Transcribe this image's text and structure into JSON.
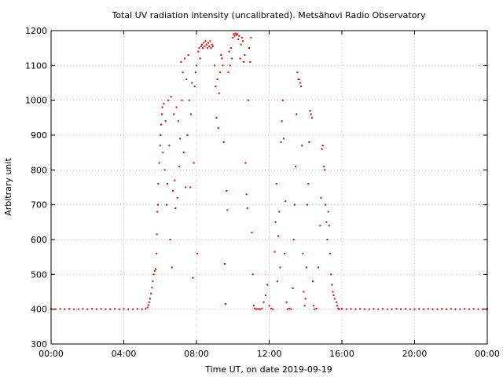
{
  "chart_data": {
    "type": "scatter",
    "title": "Total UV radiation intensity (uncalibrated). Metsähovi Radio Observatory",
    "xlabel": "Time UT, on date 2019-09-19",
    "ylabel": "Arbitrary unit",
    "xlim": [
      0,
      24
    ],
    "ylim": [
      300,
      1200
    ],
    "grid": true,
    "series_color": "#e00000",
    "x_ticks": [
      {
        "value": 0,
        "label": "00:00"
      },
      {
        "value": 4,
        "label": "04:00"
      },
      {
        "value": 8,
        "label": "08:00"
      },
      {
        "value": 12,
        "label": "12:00"
      },
      {
        "value": 16,
        "label": "16:00"
      },
      {
        "value": 20,
        "label": "20:00"
      },
      {
        "value": 24,
        "label": "00:00"
      }
    ],
    "y_ticks": [
      {
        "value": 300,
        "label": "300"
      },
      {
        "value": 400,
        "label": "400"
      },
      {
        "value": 500,
        "label": "500"
      },
      {
        "value": 600,
        "label": "600"
      },
      {
        "value": 700,
        "label": "700"
      },
      {
        "value": 800,
        "label": "800"
      },
      {
        "value": 900,
        "label": "900"
      },
      {
        "value": 1000,
        "label": "1000"
      },
      {
        "value": 1100,
        "label": "1100"
      },
      {
        "value": 1200,
        "label": "1200"
      }
    ],
    "points": [
      [
        0.0,
        401
      ],
      [
        0.25,
        400
      ],
      [
        0.5,
        401
      ],
      [
        0.75,
        400
      ],
      [
        1.0,
        401
      ],
      [
        1.25,
        400
      ],
      [
        1.5,
        400
      ],
      [
        1.75,
        401
      ],
      [
        2.0,
        400
      ],
      [
        2.25,
        401
      ],
      [
        2.5,
        400
      ],
      [
        2.75,
        401
      ],
      [
        3.0,
        400
      ],
      [
        3.25,
        400
      ],
      [
        3.5,
        401
      ],
      [
        3.75,
        400
      ],
      [
        4.0,
        401
      ],
      [
        4.25,
        400
      ],
      [
        4.5,
        400
      ],
      [
        4.75,
        401
      ],
      [
        5.0,
        400
      ],
      [
        5.2,
        401
      ],
      [
        5.3,
        405
      ],
      [
        5.35,
        412
      ],
      [
        5.4,
        420
      ],
      [
        5.45,
        430
      ],
      [
        5.5,
        445
      ],
      [
        5.55,
        462
      ],
      [
        5.6,
        480
      ],
      [
        5.65,
        500
      ],
      [
        5.7,
        510
      ],
      [
        5.75,
        515
      ],
      [
        5.8,
        560
      ],
      [
        5.82,
        615
      ],
      [
        5.85,
        680
      ],
      [
        5.88,
        700
      ],
      [
        5.9,
        760
      ],
      [
        5.95,
        820
      ],
      [
        6.0,
        870
      ],
      [
        6.02,
        900
      ],
      [
        6.05,
        930
      ],
      [
        6.1,
        960
      ],
      [
        6.12,
        980
      ],
      [
        6.15,
        850
      ],
      [
        6.2,
        990
      ],
      [
        6.25,
        800
      ],
      [
        6.3,
        940
      ],
      [
        6.35,
        700
      ],
      [
        6.4,
        760
      ],
      [
        6.45,
        1000
      ],
      [
        6.5,
        870
      ],
      [
        6.55,
        600
      ],
      [
        6.6,
        1010
      ],
      [
        6.65,
        520
      ],
      [
        6.7,
        740
      ],
      [
        6.75,
        960
      ],
      [
        6.8,
        770
      ],
      [
        6.85,
        690
      ],
      [
        6.9,
        980
      ],
      [
        6.95,
        720
      ],
      [
        7.0,
        940
      ],
      [
        7.05,
        810
      ],
      [
        7.1,
        890
      ],
      [
        7.15,
        1110
      ],
      [
        7.2,
        1000
      ],
      [
        7.25,
        1080
      ],
      [
        7.3,
        850
      ],
      [
        7.35,
        1120
      ],
      [
        7.4,
        750
      ],
      [
        7.45,
        1060
      ],
      [
        7.5,
        900
      ],
      [
        7.55,
        1130
      ],
      [
        7.6,
        1000
      ],
      [
        7.65,
        750
      ],
      [
        7.7,
        960
      ],
      [
        7.75,
        1050
      ],
      [
        7.8,
        490
      ],
      [
        7.85,
        820
      ],
      [
        7.9,
        1040
      ],
      [
        7.95,
        1080
      ],
      [
        8.0,
        1100
      ],
      [
        8.05,
        560
      ],
      [
        8.1,
        1140
      ],
      [
        8.15,
        1150
      ],
      [
        8.2,
        1120
      ],
      [
        8.25,
        1155
      ],
      [
        8.3,
        1160
      ],
      [
        8.35,
        1150
      ],
      [
        8.4,
        1165
      ],
      [
        8.45,
        1155
      ],
      [
        8.5,
        1170
      ],
      [
        8.55,
        1160
      ],
      [
        8.6,
        1150
      ],
      [
        8.65,
        1165
      ],
      [
        8.7,
        1155
      ],
      [
        8.75,
        1170
      ],
      [
        8.8,
        1150
      ],
      [
        8.85,
        1160
      ],
      [
        8.9,
        1155
      ],
      [
        9.0,
        1100
      ],
      [
        9.05,
        1040
      ],
      [
        9.1,
        950
      ],
      [
        9.15,
        1060
      ],
      [
        9.2,
        920
      ],
      [
        9.25,
        1020
      ],
      [
        9.3,
        1080
      ],
      [
        9.35,
        1130
      ],
      [
        9.4,
        1120
      ],
      [
        9.45,
        1100
      ],
      [
        9.5,
        880
      ],
      [
        9.55,
        530
      ],
      [
        9.6,
        415
      ],
      [
        9.65,
        740
      ],
      [
        9.7,
        685
      ],
      [
        9.75,
        1080
      ],
      [
        9.8,
        1140
      ],
      [
        9.85,
        1100
      ],
      [
        9.9,
        1150
      ],
      [
        9.95,
        1120
      ],
      [
        10.0,
        1180
      ],
      [
        10.05,
        1190
      ],
      [
        10.1,
        1185
      ],
      [
        10.15,
        1192
      ],
      [
        10.2,
        1188
      ],
      [
        10.25,
        1190
      ],
      [
        10.3,
        1175
      ],
      [
        10.35,
        1185
      ],
      [
        10.4,
        1120
      ],
      [
        10.45,
        1160
      ],
      [
        10.5,
        1180
      ],
      [
        10.55,
        1170
      ],
      [
        10.6,
        1110
      ],
      [
        10.65,
        1130
      ],
      [
        10.7,
        820
      ],
      [
        10.75,
        730
      ],
      [
        10.8,
        690
      ],
      [
        10.85,
        1000
      ],
      [
        10.9,
        1150
      ],
      [
        10.95,
        1110
      ],
      [
        11.0,
        1180
      ],
      [
        11.05,
        620
      ],
      [
        11.1,
        500
      ],
      [
        11.15,
        410
      ],
      [
        11.2,
        402
      ],
      [
        11.3,
        400
      ],
      [
        11.4,
        401
      ],
      [
        11.5,
        400
      ],
      [
        11.6,
        402
      ],
      [
        11.7,
        420
      ],
      [
        11.8,
        440
      ],
      [
        11.9,
        470
      ],
      [
        12.0,
        410
      ],
      [
        12.1,
        402
      ],
      [
        12.2,
        400
      ],
      [
        12.3,
        565
      ],
      [
        12.35,
        650
      ],
      [
        12.4,
        760
      ],
      [
        12.45,
        480
      ],
      [
        12.5,
        610
      ],
      [
        12.55,
        680
      ],
      [
        12.6,
        520
      ],
      [
        12.65,
        880
      ],
      [
        12.7,
        940
      ],
      [
        12.75,
        1000
      ],
      [
        12.8,
        890
      ],
      [
        12.85,
        560
      ],
      [
        12.9,
        710
      ],
      [
        12.95,
        420
      ],
      [
        13.0,
        400
      ],
      [
        13.1,
        402
      ],
      [
        13.2,
        400
      ],
      [
        13.3,
        460
      ],
      [
        13.35,
        600
      ],
      [
        13.4,
        700
      ],
      [
        13.45,
        810
      ],
      [
        13.5,
        960
      ],
      [
        13.55,
        1080
      ],
      [
        13.6,
        1060
      ],
      [
        13.65,
        1060
      ],
      [
        13.7,
        1050
      ],
      [
        13.75,
        1040
      ],
      [
        13.8,
        870
      ],
      [
        13.85,
        560
      ],
      [
        13.9,
        450
      ],
      [
        13.95,
        410
      ],
      [
        14.0,
        430
      ],
      [
        14.05,
        520
      ],
      [
        14.1,
        700
      ],
      [
        14.15,
        760
      ],
      [
        14.2,
        880
      ],
      [
        14.25,
        970
      ],
      [
        14.3,
        960
      ],
      [
        14.35,
        950
      ],
      [
        14.4,
        480
      ],
      [
        14.45,
        410
      ],
      [
        14.5,
        400
      ],
      [
        14.6,
        402
      ],
      [
        14.7,
        520
      ],
      [
        14.8,
        640
      ],
      [
        14.85,
        720
      ],
      [
        14.9,
        860
      ],
      [
        14.95,
        870
      ],
      [
        15.0,
        810
      ],
      [
        15.05,
        800
      ],
      [
        15.1,
        700
      ],
      [
        15.15,
        650
      ],
      [
        15.2,
        600
      ],
      [
        15.25,
        680
      ],
      [
        15.3,
        640
      ],
      [
        15.35,
        560
      ],
      [
        15.4,
        500
      ],
      [
        15.45,
        470
      ],
      [
        15.5,
        450
      ],
      [
        15.55,
        440
      ],
      [
        15.6,
        430
      ],
      [
        15.7,
        420
      ],
      [
        15.75,
        410
      ],
      [
        15.8,
        402
      ],
      [
        15.85,
        400
      ],
      [
        16.0,
        401
      ],
      [
        16.25,
        400
      ],
      [
        16.5,
        401
      ],
      [
        16.75,
        400
      ],
      [
        17.0,
        401
      ],
      [
        17.25,
        400
      ],
      [
        17.5,
        400
      ],
      [
        17.75,
        401
      ],
      [
        18.0,
        400
      ],
      [
        18.25,
        401
      ],
      [
        18.5,
        400
      ],
      [
        18.75,
        400
      ],
      [
        19.0,
        401
      ],
      [
        19.25,
        400
      ],
      [
        19.5,
        401
      ],
      [
        19.75,
        400
      ],
      [
        20.0,
        400
      ],
      [
        20.25,
        401
      ],
      [
        20.5,
        400
      ],
      [
        20.75,
        401
      ],
      [
        21.0,
        400
      ],
      [
        21.25,
        400
      ],
      [
        21.5,
        401
      ],
      [
        21.75,
        400
      ],
      [
        22.0,
        401
      ],
      [
        22.25,
        400
      ],
      [
        22.5,
        400
      ],
      [
        22.75,
        401
      ],
      [
        23.0,
        400
      ],
      [
        23.25,
        401
      ],
      [
        23.5,
        400
      ],
      [
        23.75,
        400
      ],
      [
        24.0,
        401
      ]
    ]
  }
}
